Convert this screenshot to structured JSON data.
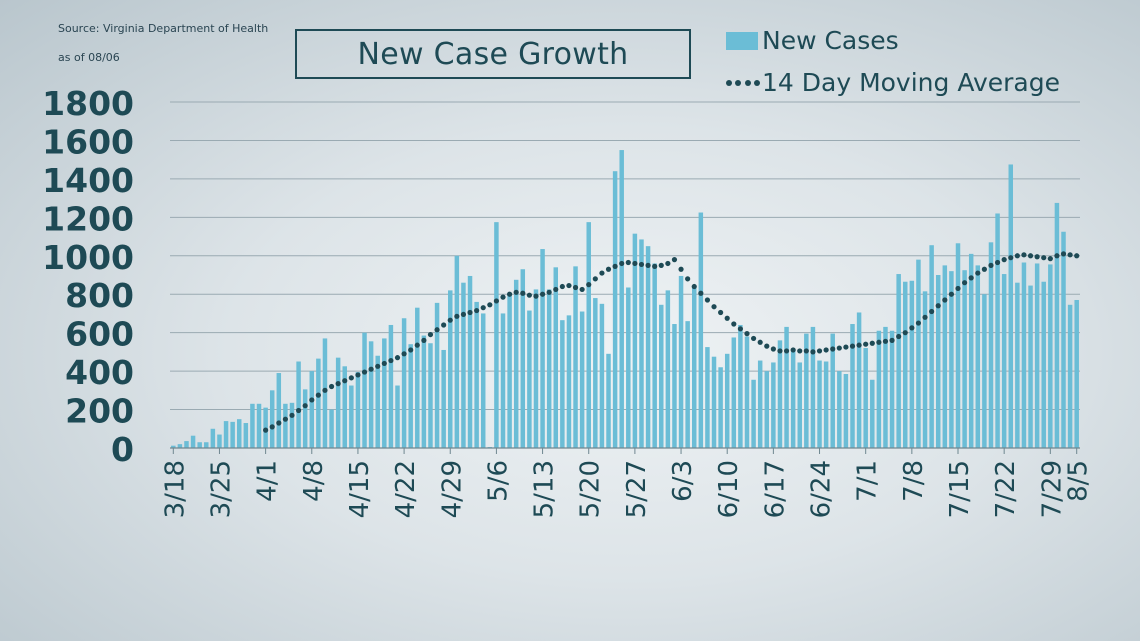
{
  "source_line1": "Source:  Virginia Department  of Health",
  "source_line2": "as of 08/06",
  "chart_data": {
    "type": "bar",
    "title": "New Case Growth",
    "legend": [
      "New Cases",
      "14 Day Moving Average"
    ],
    "legend_placement": "top-right",
    "ylim": [
      0,
      1800
    ],
    "yticks": [
      0,
      200,
      400,
      600,
      800,
      1000,
      1200,
      1400,
      1600,
      1800
    ],
    "grid": true,
    "xtick_labels": [
      "3/18",
      "3/25",
      "4/1",
      "4/8",
      "4/15",
      "4/22",
      "4/29",
      "5/6",
      "5/13",
      "5/20",
      "5/27",
      "6/3",
      "6/10",
      "6/17",
      "6/24",
      "7/1",
      "7/8",
      "7/15",
      "7/22",
      "7/29",
      "8/5"
    ],
    "colors": {
      "bars": "#6bbdd6",
      "average": "#1e4a55",
      "grid": "#9aaab2",
      "text": "#1e4a55"
    },
    "series": [
      {
        "name": "New Cases",
        "values": [
          12,
          20,
          36,
          64,
          30,
          30,
          100,
          70,
          140,
          136,
          150,
          130,
          230,
          230,
          210,
          300,
          390,
          230,
          235,
          450,
          305,
          400,
          465,
          570,
          200,
          470,
          425,
          325,
          395,
          600,
          555,
          480,
          570,
          640,
          325,
          675,
          540,
          730,
          585,
          545,
          755,
          510,
          820,
          1000,
          860,
          895,
          760,
          700,
          5,
          1175,
          700,
          800,
          875,
          930,
          715,
          825,
          1035,
          825,
          940,
          665,
          690,
          945,
          710,
          1175,
          780,
          750,
          490,
          1440,
          1550,
          835,
          1115,
          1085,
          1050,
          960,
          745,
          820,
          645,
          895,
          660,
          840,
          1225,
          525,
          475,
          420,
          490,
          575,
          640,
          580,
          355,
          455,
          400,
          445,
          560,
          630,
          505,
          445,
          595,
          630,
          455,
          450,
          595,
          400,
          385,
          645,
          705,
          520,
          355,
          610,
          630,
          610,
          905,
          865,
          870,
          980,
          815,
          1055,
          900,
          950,
          920,
          1065,
          925,
          1010,
          950,
          800,
          1070,
          1220,
          905,
          1475,
          860,
          965,
          845,
          960,
          865,
          955,
          1275,
          1125,
          745,
          770
        ]
      },
      {
        "name": "14 Day Moving Average",
        "start_index": 14,
        "values": [
          93,
          110,
          130,
          150,
          170,
          195,
          220,
          250,
          275,
          300,
          320,
          335,
          350,
          365,
          380,
          395,
          410,
          425,
          440,
          455,
          470,
          490,
          510,
          535,
          560,
          590,
          615,
          640,
          665,
          685,
          695,
          705,
          715,
          730,
          745,
          765,
          785,
          800,
          810,
          805,
          795,
          790,
          800,
          810,
          825,
          840,
          845,
          835,
          825,
          850,
          880,
          910,
          930,
          945,
          960,
          965,
          960,
          955,
          950,
          945,
          950,
          960,
          980,
          930,
          880,
          840,
          805,
          770,
          735,
          705,
          675,
          645,
          620,
          595,
          570,
          550,
          530,
          515,
          505,
          505,
          510,
          505,
          505,
          500,
          505,
          510,
          515,
          520,
          525,
          530,
          535,
          540,
          545,
          550,
          555,
          560,
          580,
          600,
          625,
          650,
          680,
          710,
          740,
          770,
          800,
          830,
          860,
          885,
          910,
          930,
          950,
          965,
          980,
          990,
          1000,
          1005,
          1000,
          995,
          990,
          985,
          1000,
          1010,
          1005,
          1000
        ]
      }
    ]
  }
}
